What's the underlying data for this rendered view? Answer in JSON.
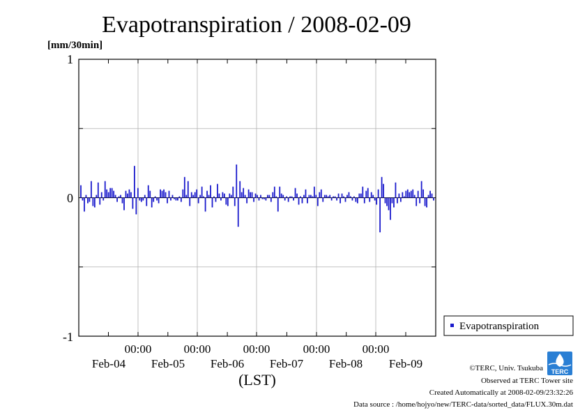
{
  "chart_data": {
    "type": "bar",
    "title": "Evapotranspiration / 2008-02-09",
    "ylabel": "[mm/30min]",
    "xlabel": "(LST)",
    "ylim": [
      -1,
      1
    ],
    "yticks": [
      "1",
      "0",
      "-1"
    ],
    "xtick_times": [
      "00:00",
      "00:00",
      "00:00",
      "00:00",
      "00:00"
    ],
    "xtick_dates": [
      "Feb-04",
      "Feb-05",
      "Feb-06",
      "Feb-07",
      "Feb-08",
      "Feb-09"
    ],
    "grid": true,
    "legend_position": "right",
    "series": [
      {
        "name": "Evapotranspiration",
        "color": "#1a1acc",
        "values": [
          0.09,
          -0.02,
          -0.1,
          0.02,
          -0.04,
          -0.03,
          0.12,
          -0.06,
          -0.07,
          0.02,
          0.11,
          -0.05,
          0.04,
          -0.02,
          0.12,
          0.06,
          0.04,
          0.07,
          0.07,
          0.05,
          0.02,
          -0.03,
          0.01,
          0.02,
          -0.04,
          -0.09,
          0.05,
          0.03,
          0.06,
          0.04,
          -0.08,
          0.23,
          -0.12,
          0.07,
          -0.02,
          -0.03,
          -0.02,
          0.02,
          -0.06,
          0.09,
          0.05,
          -0.07,
          -0.03,
          0.01,
          -0.02,
          -0.04,
          0.06,
          0.05,
          0.06,
          0.04,
          -0.04,
          0.05,
          -0.02,
          0.02,
          -0.01,
          -0.02,
          -0.02,
          0.01,
          -0.03,
          0.06,
          0.15,
          0.02,
          0.12,
          -0.06,
          0.04,
          0.02,
          0.04,
          0.06,
          -0.04,
          0.02,
          0.08,
          0.01,
          -0.1,
          0.05,
          0.02,
          0.09,
          -0.07,
          0.01,
          -0.03,
          0.1,
          0.03,
          -0.02,
          0.04,
          0.03,
          -0.05,
          -0.06,
          0.03,
          0.02,
          0.08,
          -0.06,
          0.24,
          -0.21,
          0.12,
          0.04,
          0.07,
          0.02,
          -0.04,
          0.06,
          0.04,
          0.04,
          -0.03,
          0.03,
          0.02,
          -0.02,
          0.02,
          -0.01,
          -0.01,
          -0.02,
          0.02,
          0.02,
          -0.03,
          0.04,
          0.08,
          0.01,
          -0.1,
          0.08,
          0.03,
          0.02,
          -0.02,
          0.01,
          -0.03,
          0.01,
          0.01,
          -0.02,
          0.07,
          0.03,
          -0.05,
          0.01,
          -0.04,
          0.02,
          0.06,
          -0.04,
          0.02,
          0.02,
          0.01,
          0.08,
          0.02,
          -0.06,
          0.04,
          0.06,
          -0.03,
          0.02,
          0.02,
          0.01,
          0.02,
          -0.02,
          0.01,
          0.01,
          -0.02,
          0.03,
          -0.04,
          0.03,
          0.01,
          -0.03,
          0.02,
          0.04,
          0.01,
          -0.02,
          0.01,
          -0.03,
          -0.04,
          0.03,
          0.03,
          0.08,
          -0.04,
          0.05,
          0.07,
          -0.03,
          0.04,
          0.02,
          -0.02,
          -0.05,
          0.06,
          -0.25,
          0.15,
          0.1,
          -0.04,
          -0.06,
          -0.09,
          -0.16,
          -0.04,
          -0.07,
          0.11,
          -0.04,
          0.03,
          -0.03,
          0.04,
          0.01,
          0.05,
          0.06,
          0.04,
          0.05,
          0.06,
          0.02,
          -0.06,
          0.05,
          -0.04,
          0.12,
          0.06,
          -0.06,
          -0.07,
          0.02,
          0.05,
          0.03,
          -0.02
        ]
      }
    ]
  },
  "legend": {
    "label": "Evapotranspiration"
  },
  "footer": {
    "copyright": "©TERC, Univ. Tsukuba",
    "observed": "Observed at TERC Tower site",
    "created": "Created Automatically at 2008-02-09/23:32:26",
    "source": "Data source : /home/hojyo/new/TERC-data/sorted_data/FLUX.30m.dat"
  },
  "logo": {
    "text": "TERC"
  }
}
